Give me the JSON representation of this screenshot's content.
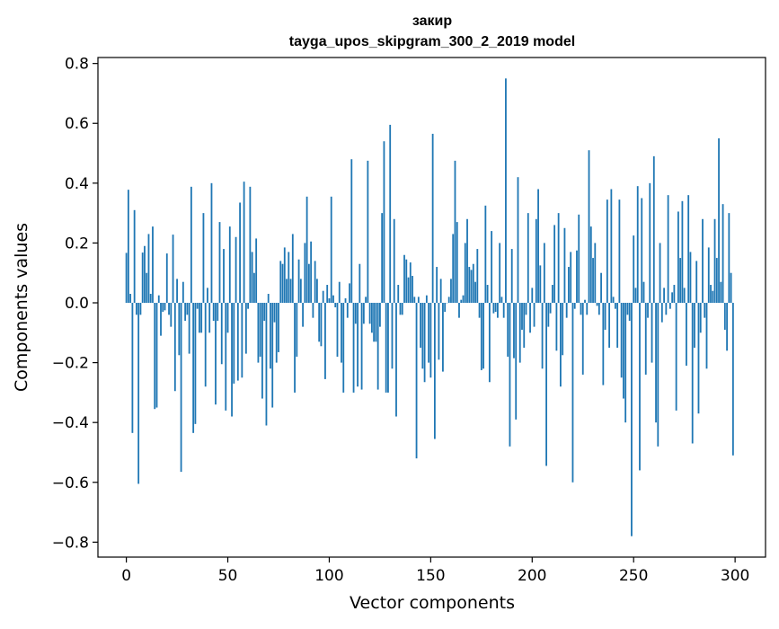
{
  "chart_data": {
    "type": "bar",
    "title_line1": "закир",
    "title_line2": "tayga_upos_skipgram_300_2_2019 model",
    "xlabel": "Vector components",
    "ylabel": "Components values",
    "xlim": [
      -14,
      315
    ],
    "ylim": [
      -0.85,
      0.82
    ],
    "xticks": [
      0,
      50,
      100,
      150,
      200,
      250,
      300
    ],
    "yticks": [
      0.8,
      0.6,
      0.4,
      0.2,
      0.0,
      -0.2,
      -0.4,
      -0.6,
      -0.8
    ],
    "ytick_labels": [
      "0.8",
      "0.6",
      "0.4",
      "0.2",
      "0.0",
      "−0.2",
      "−0.4",
      "−0.6",
      "−0.8"
    ],
    "bar_color": "#1f77b4",
    "values": [
      0.167,
      0.378,
      0.03,
      -0.435,
      0.31,
      -0.04,
      -0.605,
      -0.04,
      0.168,
      0.19,
      0.1,
      0.23,
      0.03,
      0.255,
      -0.355,
      -0.35,
      0.025,
      -0.11,
      -0.03,
      -0.025,
      0.165,
      -0.04,
      -0.08,
      0.228,
      -0.295,
      0.08,
      -0.175,
      -0.565,
      0.07,
      -0.06,
      -0.04,
      -0.17,
      0.388,
      -0.435,
      -0.405,
      -0.02,
      -0.1,
      -0.1,
      0.3,
      -0.28,
      0.05,
      -0.1,
      0.4,
      -0.06,
      -0.34,
      -0.06,
      0.27,
      -0.205,
      0.18,
      -0.36,
      -0.1,
      0.255,
      -0.38,
      -0.27,
      0.22,
      -0.26,
      0.335,
      -0.25,
      0.405,
      -0.17,
      -0.02,
      0.388,
      0.17,
      0.1,
      0.215,
      -0.2,
      -0.18,
      -0.32,
      -0.06,
      -0.41,
      0.03,
      -0.22,
      -0.35,
      -0.065,
      -0.2,
      -0.165,
      0.14,
      0.13,
      0.185,
      0.08,
      0.17,
      0.08,
      0.23,
      -0.3,
      -0.18,
      0.145,
      0.08,
      -0.08,
      0.2,
      0.355,
      0.13,
      0.205,
      -0.05,
      0.14,
      0.08,
      -0.13,
      -0.145,
      0.04,
      -0.255,
      0.06,
      0.015,
      0.355,
      0.025,
      -0.015,
      -0.18,
      0.07,
      -0.2,
      -0.3,
      0.015,
      -0.05,
      0.065,
      0.48,
      -0.3,
      -0.07,
      -0.28,
      0.13,
      -0.29,
      -0.07,
      0.02,
      0.475,
      -0.07,
      -0.1,
      -0.13,
      -0.13,
      -0.29,
      -0.08,
      0.3,
      0.54,
      -0.3,
      -0.3,
      0.595,
      -0.22,
      0.28,
      -0.38,
      0.06,
      -0.04,
      -0.04,
      0.16,
      0.145,
      0.085,
      0.135,
      0.09,
      0.02,
      -0.52,
      0.02,
      -0.15,
      -0.22,
      -0.265,
      0.025,
      -0.2,
      -0.25,
      0.565,
      -0.455,
      0.12,
      -0.19,
      0.08,
      -0.23,
      -0.03,
      0.0,
      0.02,
      0.08,
      0.23,
      0.475,
      0.27,
      -0.05,
      0.01,
      0.025,
      0.2,
      0.28,
      0.12,
      0.11,
      0.13,
      0.07,
      0.18,
      -0.05,
      -0.225,
      -0.22,
      0.325,
      0.06,
      -0.265,
      0.24,
      -0.035,
      -0.03,
      -0.05,
      0.2,
      0.02,
      -0.05,
      0.75,
      -0.18,
      -0.48,
      0.18,
      -0.185,
      -0.39,
      0.42,
      -0.2,
      -0.09,
      -0.15,
      -0.04,
      0.3,
      -0.1,
      0.05,
      -0.08,
      0.28,
      0.38,
      0.125,
      -0.22,
      0.2,
      -0.545,
      -0.08,
      -0.035,
      0.06,
      0.26,
      -0.16,
      0.3,
      -0.28,
      -0.175,
      0.25,
      -0.05,
      0.12,
      0.17,
      -0.6,
      -0.02,
      0.175,
      0.295,
      -0.04,
      -0.24,
      0.01,
      -0.04,
      0.51,
      0.255,
      0.15,
      0.2,
      -0.01,
      -0.04,
      0.1,
      -0.275,
      -0.09,
      0.345,
      -0.15,
      0.38,
      0.02,
      -0.02,
      -0.15,
      0.345,
      -0.25,
      -0.32,
      -0.4,
      -0.04,
      -0.06,
      -0.78,
      0.225,
      0.05,
      0.39,
      -0.56,
      0.35,
      0.07,
      -0.24,
      -0.05,
      0.4,
      -0.2,
      0.49,
      -0.4,
      -0.48,
      0.2,
      -0.065,
      0.05,
      -0.04,
      0.36,
      -0.02,
      0.035,
      0.06,
      -0.36,
      0.305,
      0.15,
      0.34,
      0.05,
      -0.21,
      0.36,
      0.17,
      -0.47,
      -0.15,
      0.14,
      -0.37,
      -0.1,
      0.28,
      -0.05,
      -0.22,
      0.185,
      0.06,
      0.04,
      0.28,
      0.15,
      0.55,
      0.07,
      0.33,
      -0.09,
      -0.16,
      0.3,
      0.1,
      -0.51
    ]
  }
}
